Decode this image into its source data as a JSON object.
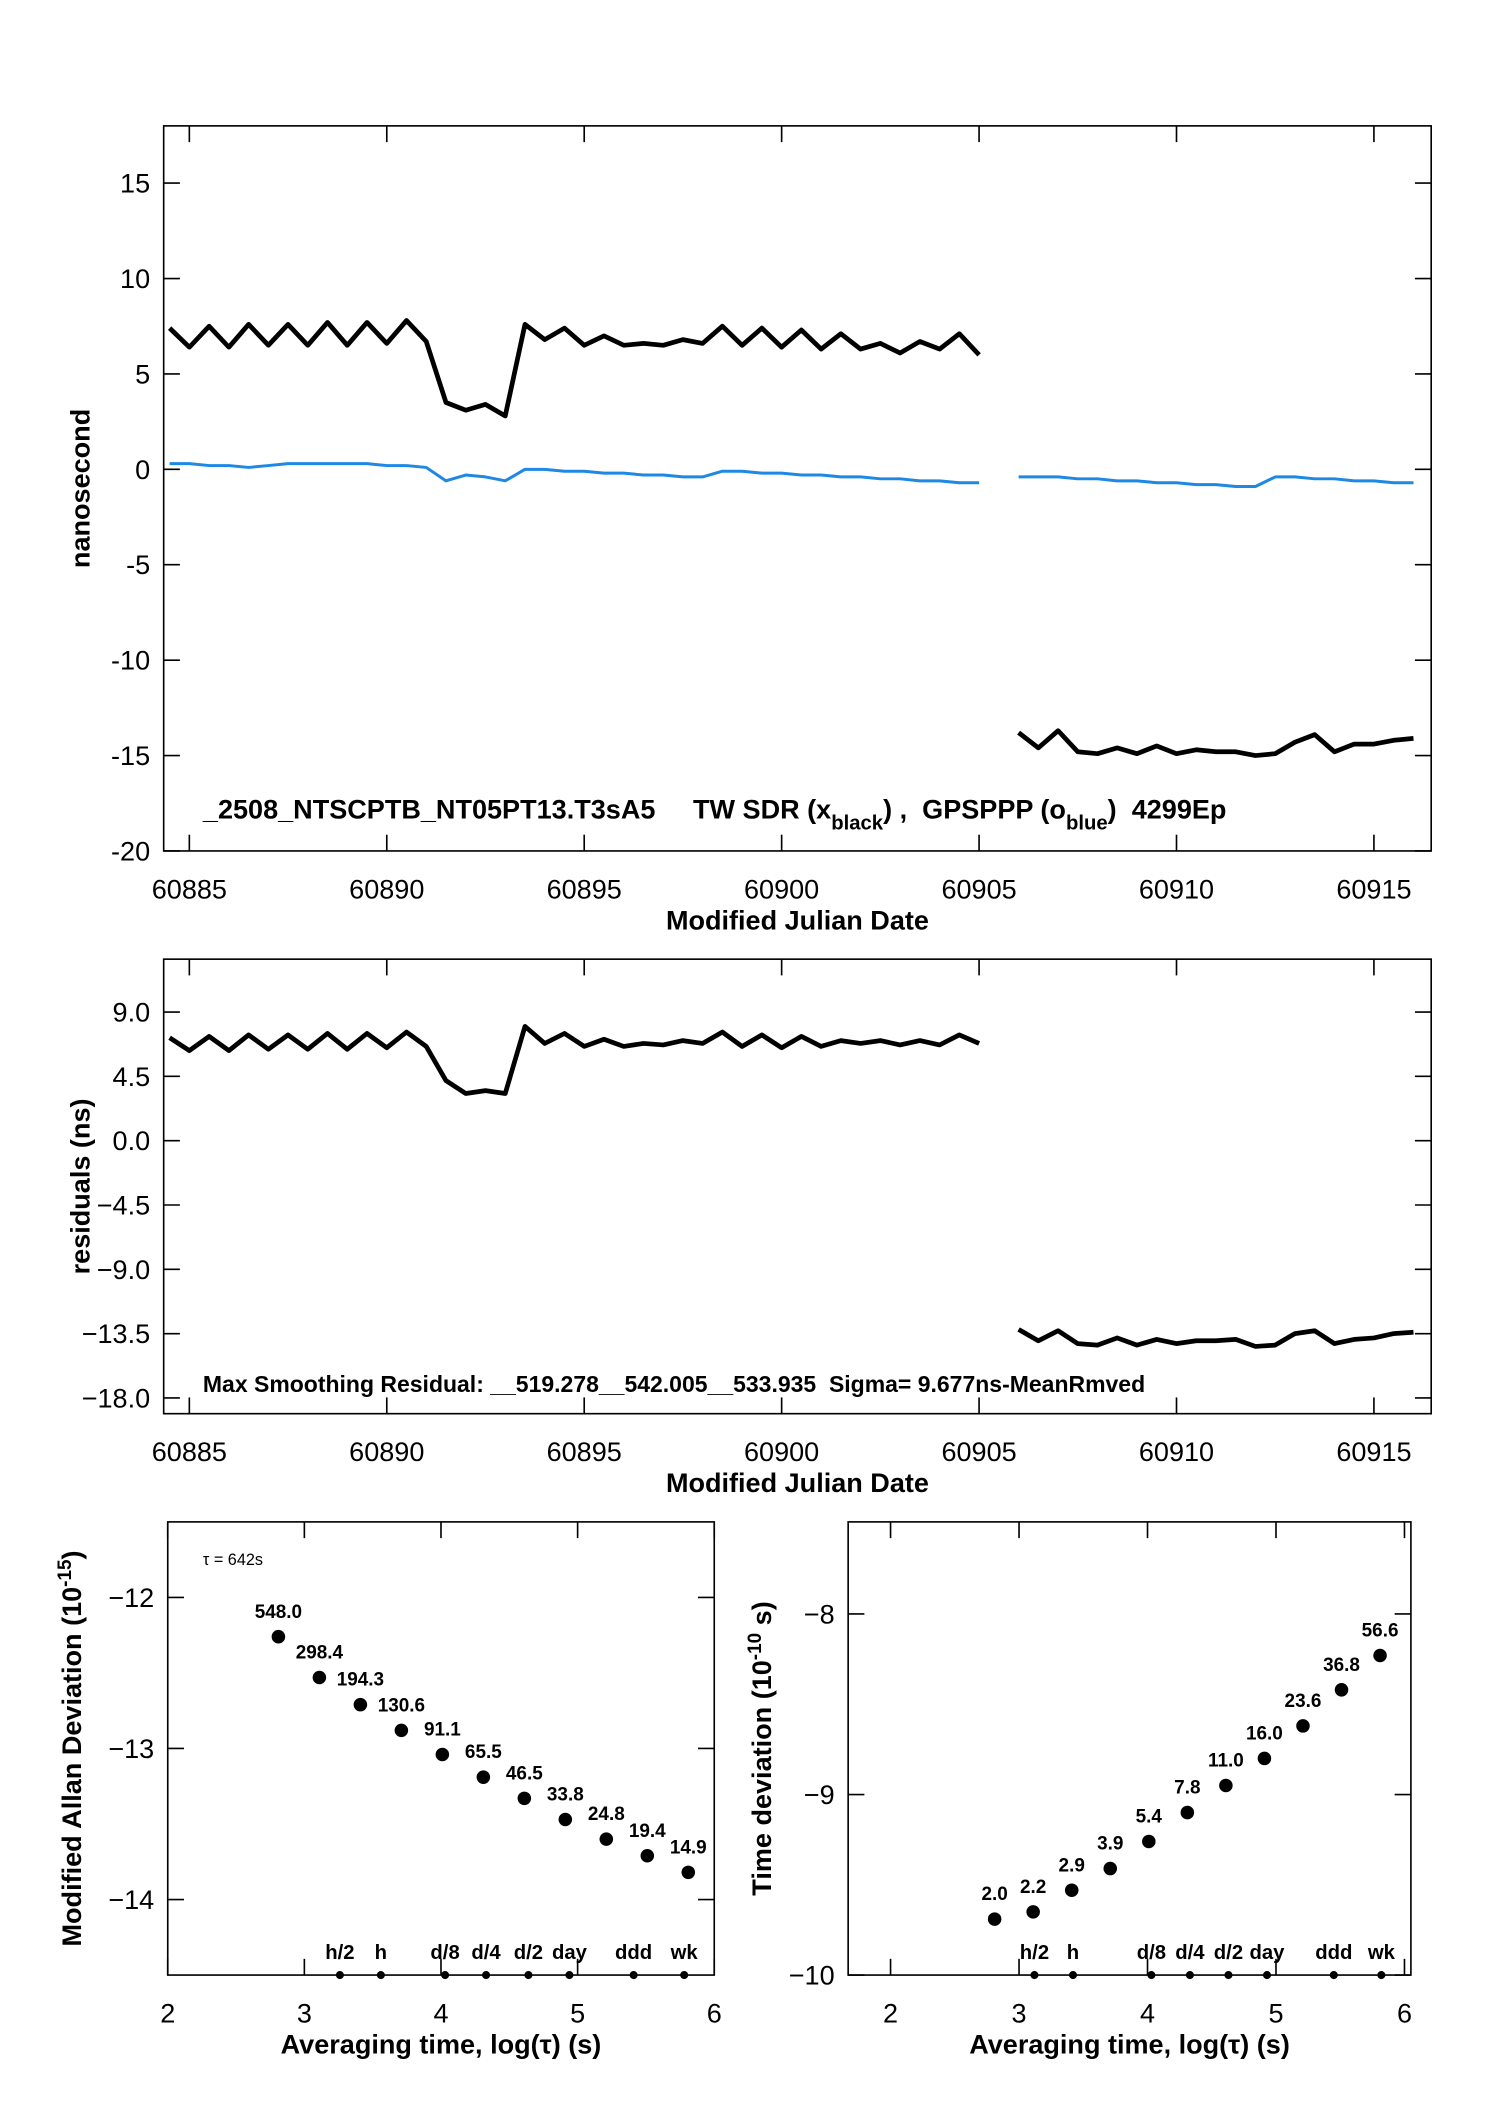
{
  "chart_data": [
    {
      "type": "line",
      "ylabel": "nanosecond",
      "xlabel": "Modified Julian Date",
      "annotation": [
        {
          "text": "_2508_NTSCPTB_NT05PT13.T3sA5     TW SDR (x"
        },
        {
          "sub": "black"
        },
        {
          "text": ") ,  GPSPPP (o"
        },
        {
          "sub": "blue"
        },
        {
          "text": ")  4299Ep"
        }
      ],
      "xlim": [
        60884.35,
        60916.45
      ],
      "xticks": [
        60885,
        60890,
        60895,
        60900,
        60905,
        60910,
        60915
      ],
      "ylim": [
        -20,
        18
      ],
      "yticks": [
        15,
        10,
        5,
        0,
        -5,
        -10,
        -15,
        -20
      ],
      "x": [
        60884.5,
        60885,
        60885.5,
        60886,
        60886.5,
        60887,
        60887.5,
        60888,
        60888.5,
        60889,
        60889.5,
        60890,
        60890.5,
        60891,
        60891.5,
        60892,
        60892.5,
        60893,
        60893.5,
        60894,
        60894.5,
        60895,
        60895.5,
        60896,
        60896.5,
        60897,
        60897.5,
        60898,
        60898.5,
        60899,
        60899.5,
        60900,
        60900.5,
        60901,
        60901.5,
        60902,
        60902.5,
        60903,
        60903.5,
        60904,
        60904.5,
        60905,
        60905.5,
        60906,
        60906.5,
        60907,
        60907.5,
        60908,
        60908.5,
        60909,
        60909.5,
        60910,
        60910.5,
        60911,
        60911.5,
        60912,
        60912.5,
        60913,
        60913.5,
        60914,
        60914.5,
        60915,
        60915.5,
        60916
      ],
      "series": [
        {
          "color": "#000000",
          "values": [
            7.4,
            6.4,
            7.5,
            6.4,
            7.6,
            6.5,
            7.6,
            6.5,
            7.7,
            6.5,
            7.7,
            6.6,
            7.8,
            6.7,
            3.5,
            3.1,
            3.4,
            2.8,
            7.6,
            6.8,
            7.4,
            6.5,
            7.0,
            6.5,
            6.6,
            6.5,
            6.8,
            6.6,
            7.5,
            6.5,
            7.4,
            6.4,
            7.3,
            6.3,
            7.1,
            6.3,
            6.6,
            6.1,
            6.7,
            6.3,
            7.1,
            6.0,
            null,
            -13.8,
            -14.6,
            -13.7,
            -14.8,
            -14.9,
            -14.6,
            -14.9,
            -14.5,
            -14.9,
            -14.7,
            -14.8,
            -14.8,
            -15.0,
            -14.9,
            -14.3,
            -13.9,
            -14.8,
            -14.4,
            -14.4,
            -14.2,
            -14.1
          ]
        },
        {
          "color": "#1e88e5",
          "values": [
            0.3,
            0.3,
            0.2,
            0.2,
            0.1,
            0.2,
            0.3,
            0.3,
            0.3,
            0.3,
            0.3,
            0.2,
            0.2,
            0.1,
            -0.6,
            -0.3,
            -0.4,
            -0.6,
            0.0,
            0.0,
            -0.1,
            -0.1,
            -0.2,
            -0.2,
            -0.3,
            -0.3,
            -0.4,
            -0.4,
            -0.1,
            -0.1,
            -0.2,
            -0.2,
            -0.3,
            -0.3,
            -0.4,
            -0.4,
            -0.5,
            -0.5,
            -0.6,
            -0.6,
            -0.7,
            -0.7,
            null,
            -0.4,
            -0.4,
            -0.4,
            -0.5,
            -0.5,
            -0.6,
            -0.6,
            -0.7,
            -0.7,
            -0.8,
            -0.8,
            -0.9,
            -0.9,
            -0.4,
            -0.4,
            -0.5,
            -0.5,
            -0.6,
            -0.6,
            -0.7,
            -0.7
          ]
        }
      ]
    },
    {
      "type": "line",
      "ylabel": "residuals (ns)",
      "xlabel": "Modified Julian Date",
      "annotation": [
        {
          "text": "Max Smoothing Residual: __519.278__542.005__533.935  Sigma= 9.677ns-MeanRmved"
        }
      ],
      "xlim": [
        60884.35,
        60916.45
      ],
      "xticks": [
        60885,
        60890,
        60895,
        60900,
        60905,
        60910,
        60915
      ],
      "ylim": [
        -19.1,
        12.7
      ],
      "yticks": [
        {
          "value": 9,
          "label": "9.0"
        },
        {
          "value": 4.5,
          "label": "4.5"
        },
        {
          "value": 0,
          "label": "0.0"
        },
        {
          "value": -4.5,
          "label": "−4.5"
        },
        {
          "value": -9,
          "label": "−9.0"
        },
        {
          "value": -13.5,
          "label": "−13.5"
        },
        {
          "value": -18,
          "label": "−18.0"
        }
      ],
      "x": [
        60884.5,
        60885,
        60885.5,
        60886,
        60886.5,
        60887,
        60887.5,
        60888,
        60888.5,
        60889,
        60889.5,
        60890,
        60890.5,
        60891,
        60891.5,
        60892,
        60892.5,
        60893,
        60893.5,
        60894,
        60894.5,
        60895,
        60895.5,
        60896,
        60896.5,
        60897,
        60897.5,
        60898,
        60898.5,
        60899,
        60899.5,
        60900,
        60900.5,
        60901,
        60901.5,
        60902,
        60902.5,
        60903,
        60903.5,
        60904,
        60904.5,
        60905,
        60905.5,
        60906,
        60906.5,
        60907,
        60907.5,
        60908,
        60908.5,
        60909,
        60909.5,
        60910,
        60910.5,
        60911,
        60911.5,
        60912,
        60912.5,
        60913,
        60913.5,
        60914,
        60914.5,
        60915,
        60915.5,
        60916
      ],
      "series": [
        {
          "color": "#000000",
          "values": [
            7.2,
            6.3,
            7.3,
            6.3,
            7.4,
            6.4,
            7.4,
            6.4,
            7.5,
            6.4,
            7.5,
            6.5,
            7.6,
            6.6,
            4.2,
            3.3,
            3.5,
            3.3,
            8.0,
            6.8,
            7.5,
            6.6,
            7.1,
            6.6,
            6.8,
            6.7,
            7.0,
            6.8,
            7.6,
            6.6,
            7.4,
            6.5,
            7.3,
            6.6,
            7.0,
            6.8,
            7.0,
            6.7,
            7.0,
            6.7,
            7.4,
            6.8,
            null,
            -13.2,
            -14.0,
            -13.3,
            -14.2,
            -14.3,
            -13.8,
            -14.3,
            -13.9,
            -14.2,
            -14.0,
            -14.0,
            -13.9,
            -14.4,
            -14.3,
            -13.5,
            -13.3,
            -14.2,
            -13.9,
            -13.8,
            -13.5,
            -13.4
          ]
        }
      ]
    },
    {
      "type": "scatter",
      "ylabel": [
        {
          "text": "Modified Allan Deviation (10"
        },
        {
          "sup": "-15"
        },
        {
          "text": ")"
        }
      ],
      "xlabel": "Averaging time, log(τ) (s)",
      "annotation": [
        {
          "text": "τ = 642s"
        }
      ],
      "xlim": [
        2,
        6
      ],
      "xticks": [
        2,
        3,
        4,
        5,
        6
      ],
      "ylim": [
        -14.5,
        -11.5
      ],
      "yticks": [
        {
          "value": -12,
          "label": "−12"
        },
        {
          "value": -13,
          "label": "−13"
        },
        {
          "value": -14,
          "label": "−14"
        }
      ],
      "color": "#000000",
      "label_color": "#ff0000",
      "x": [
        2.81,
        3.11,
        3.41,
        3.71,
        4.01,
        4.31,
        4.61,
        4.91,
        5.21,
        5.51,
        5.81
      ],
      "values": [
        -12.26,
        -12.53,
        -12.71,
        -12.88,
        -13.04,
        -13.19,
        -13.33,
        -13.47,
        -13.6,
        -13.71,
        -13.82
      ],
      "value_labels": [
        "548.0",
        "298.4",
        "194.3",
        "130.6",
        "91.1",
        "65.5",
        "46.5",
        "33.8",
        "24.8",
        "19.4",
        "14.9"
      ],
      "markers": [
        {
          "label": "h/2",
          "x": 3.26
        },
        {
          "label": "h",
          "x": 3.56
        },
        {
          "label": "d/8",
          "x": 4.03
        },
        {
          "label": "d/4",
          "x": 4.33
        },
        {
          "label": "d/2",
          "x": 4.64
        },
        {
          "label": "day",
          "x": 4.94
        },
        {
          "label": "ddd",
          "x": 5.41
        },
        {
          "label": "wk",
          "x": 5.78
        }
      ]
    },
    {
      "type": "scatter",
      "ylabel": [
        {
          "text": "Time deviation (10"
        },
        {
          "sup": "-10"
        },
        {
          "text": " s)"
        }
      ],
      "xlabel": "Averaging time, log(τ) (s)",
      "xlim": [
        1.67,
        6.05
      ],
      "xticks": [
        2,
        3,
        4,
        5,
        6
      ],
      "ylim": [
        -10,
        -7.49
      ],
      "yticks": [
        {
          "value": -8,
          "label": "−8"
        },
        {
          "value": -9,
          "label": "−9"
        },
        {
          "value": -10,
          "label": "−10"
        }
      ],
      "color": "#000000",
      "label_color": "#ff0000",
      "x": [
        2.81,
        3.11,
        3.41,
        3.71,
        4.01,
        4.31,
        4.61,
        4.91,
        5.21,
        5.51,
        5.81
      ],
      "values": [
        -9.69,
        -9.65,
        -9.53,
        -9.41,
        -9.26,
        -9.1,
        -8.95,
        -8.8,
        -8.62,
        -8.42,
        -8.23
      ],
      "value_labels": [
        "2.0",
        "2.2",
        "2.9",
        "3.9",
        "5.4",
        "7.8",
        "11.0",
        "16.0",
        "23.6",
        "36.8",
        "56.6"
      ],
      "markers": [
        {
          "label": "h/2",
          "x": 3.12
        },
        {
          "label": "h",
          "x": 3.42
        },
        {
          "label": "d/8",
          "x": 4.03
        },
        {
          "label": "d/4",
          "x": 4.33
        },
        {
          "label": "d/2",
          "x": 4.63
        },
        {
          "label": "day",
          "x": 4.93
        },
        {
          "label": "ddd",
          "x": 5.45
        },
        {
          "label": "wk",
          "x": 5.82
        }
      ]
    }
  ]
}
